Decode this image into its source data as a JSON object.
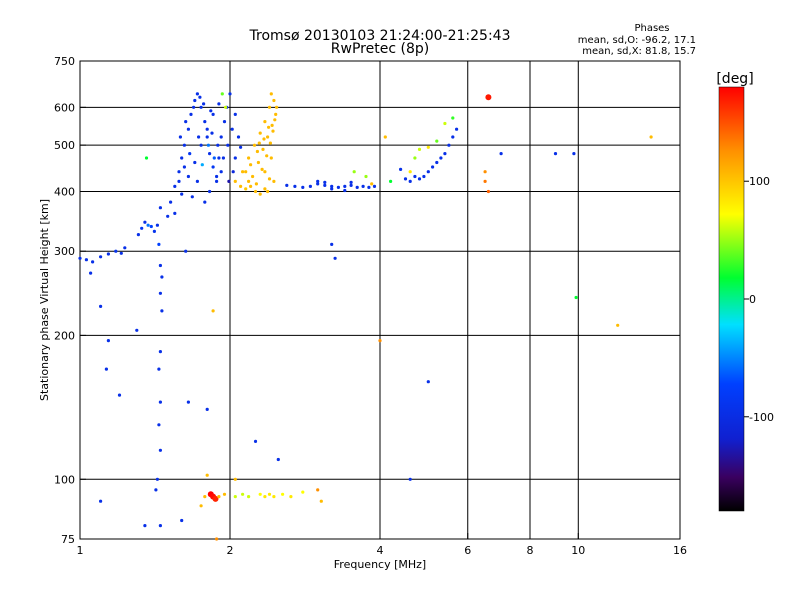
{
  "chart_data": {
    "type": "scatter",
    "title": "Tromsø 20130103 21:24:00-21:25:43",
    "subtitle": "RwPretec (8p)",
    "stats_header": "Phases",
    "stats_o": "mean, sd,O: -96.2, 17.1",
    "stats_x": "mean, sd,X: 81.8, 15.7",
    "xlabel": "Frequency [MHz]",
    "ylabel": "Stationary phase Virtual Height [km]",
    "xscale": "log",
    "yscale": "log",
    "xlim": [
      1,
      16
    ],
    "ylim": [
      75,
      750
    ],
    "xticks": [
      1,
      2,
      4,
      6,
      8,
      10,
      16
    ],
    "xtick_labels": [
      "1",
      "2",
      "4",
      "6",
      "8",
      "10",
      "16"
    ],
    "x_gridlines": [
      2,
      4,
      6,
      8,
      10
    ],
    "yticks": [
      75,
      100,
      200,
      300,
      400,
      500,
      600,
      750
    ],
    "ytick_labels": [
      "75",
      "100",
      "200",
      "300",
      "400",
      "500",
      "600",
      "750"
    ],
    "y_gridlines": [
      100,
      200,
      300,
      400,
      500,
      600
    ],
    "grid": true,
    "colorbar": {
      "label": "[deg]",
      "min": -180,
      "max": 180,
      "ticks": [
        -100,
        0,
        100
      ],
      "tick_labels": [
        "-100",
        "0",
        "100"
      ]
    },
    "points": [
      [
        1.0,
        290,
        -100
      ],
      [
        1.03,
        288,
        -100
      ],
      [
        1.06,
        285,
        -100
      ],
      [
        1.1,
        292,
        -100
      ],
      [
        1.14,
        296,
        -100
      ],
      [
        1.18,
        300,
        -95
      ],
      [
        1.21,
        297,
        -100
      ],
      [
        1.23,
        305,
        -100
      ],
      [
        1.31,
        325,
        -100
      ],
      [
        1.33,
        335,
        -90
      ],
      [
        1.35,
        345,
        -100
      ],
      [
        1.37,
        340,
        -60
      ],
      [
        1.39,
        338,
        -80
      ],
      [
        1.36,
        470,
        20
      ],
      [
        1.41,
        330,
        -95
      ],
      [
        1.43,
        340,
        -100
      ],
      [
        1.45,
        370,
        -100
      ],
      [
        1.44,
        310,
        -80
      ],
      [
        1.5,
        355,
        -100
      ],
      [
        1.52,
        380,
        -100
      ],
      [
        1.55,
        410,
        -100
      ],
      [
        1.58,
        440,
        -100
      ],
      [
        1.6,
        470,
        -100
      ],
      [
        1.62,
        500,
        -100
      ],
      [
        1.65,
        540,
        -100
      ],
      [
        1.67,
        580,
        -100
      ],
      [
        1.7,
        620,
        -100
      ],
      [
        1.72,
        640,
        -100
      ],
      [
        1.75,
        600,
        -100
      ],
      [
        1.78,
        560,
        -100
      ],
      [
        1.8,
        520,
        -100
      ],
      [
        1.82,
        480,
        -100
      ],
      [
        1.85,
        450,
        -90
      ],
      [
        1.88,
        430,
        -100
      ],
      [
        1.9,
        470,
        -100
      ],
      [
        1.92,
        520,
        -100
      ],
      [
        1.95,
        560,
        -100
      ],
      [
        1.97,
        600,
        -100
      ],
      [
        2.0,
        640,
        -100
      ],
      [
        1.55,
        360,
        -100
      ],
      [
        1.6,
        395,
        -100
      ],
      [
        1.65,
        430,
        -100
      ],
      [
        1.7,
        460,
        -100
      ],
      [
        1.75,
        500,
        -100
      ],
      [
        1.8,
        540,
        -100
      ],
      [
        1.85,
        580,
        -100
      ],
      [
        1.9,
        610,
        -100
      ],
      [
        1.58,
        420,
        -100
      ],
      [
        1.62,
        450,
        -100
      ],
      [
        1.68,
        390,
        -100
      ],
      [
        1.72,
        420,
        -100
      ],
      [
        1.78,
        380,
        -100
      ],
      [
        1.82,
        400,
        -100
      ],
      [
        1.88,
        420,
        -100
      ],
      [
        1.92,
        440,
        -100
      ],
      [
        1.66,
        480,
        -90
      ],
      [
        1.73,
        520,
        -100
      ],
      [
        1.81,
        500,
        -60
      ],
      [
        1.86,
        470,
        -70
      ],
      [
        1.94,
        470,
        -100
      ],
      [
        1.98,
        500,
        -100
      ],
      [
        2.02,
        540,
        -100
      ],
      [
        2.05,
        580,
        -100
      ],
      [
        2.08,
        520,
        -100
      ],
      [
        2.1,
        495,
        -100
      ],
      [
        1.99,
        420,
        -130
      ],
      [
        2.03,
        440,
        -110
      ],
      [
        1.76,
        455,
        -40
      ],
      [
        1.84,
        530,
        -100
      ],
      [
        1.77,
        610,
        -100
      ],
      [
        1.83,
        590,
        -100
      ],
      [
        1.93,
        640,
        40
      ],
      [
        1.96,
        600,
        60
      ],
      [
        2.05,
        470,
        -100
      ],
      [
        1.89,
        500,
        -100
      ],
      [
        1.59,
        520,
        -100
      ],
      [
        1.63,
        560,
        -100
      ],
      [
        1.69,
        600,
        -100
      ],
      [
        1.74,
        630,
        -100
      ],
      [
        2.05,
        420,
        100
      ],
      [
        2.1,
        410,
        100
      ],
      [
        2.15,
        405,
        95
      ],
      [
        2.2,
        410,
        100
      ],
      [
        2.25,
        400,
        100
      ],
      [
        2.3,
        395,
        100
      ],
      [
        2.35,
        405,
        100
      ],
      [
        2.38,
        400,
        100
      ],
      [
        2.12,
        440,
        100
      ],
      [
        2.18,
        470,
        100
      ],
      [
        2.24,
        500,
        100
      ],
      [
        2.3,
        530,
        100
      ],
      [
        2.35,
        560,
        100
      ],
      [
        2.4,
        600,
        100
      ],
      [
        2.42,
        640,
        100
      ],
      [
        2.45,
        620,
        100
      ],
      [
        2.22,
        430,
        100
      ],
      [
        2.28,
        460,
        100
      ],
      [
        2.33,
        490,
        100
      ],
      [
        2.38,
        520,
        100
      ],
      [
        2.43,
        550,
        100
      ],
      [
        2.47,
        580,
        100
      ],
      [
        2.26,
        415,
        100
      ],
      [
        2.32,
        445,
        100
      ],
      [
        2.37,
        475,
        100
      ],
      [
        2.41,
        505,
        100
      ],
      [
        2.44,
        535,
        100
      ],
      [
        2.46,
        565,
        100
      ],
      [
        2.2,
        455,
        100
      ],
      [
        2.27,
        485,
        100
      ],
      [
        2.34,
        515,
        100
      ],
      [
        2.39,
        545,
        100
      ],
      [
        2.45,
        420,
        100
      ],
      [
        2.4,
        425,
        100
      ],
      [
        2.48,
        600,
        100
      ],
      [
        2.18,
        420,
        100
      ],
      [
        2.15,
        440,
        100
      ],
      [
        2.35,
        440,
        100
      ],
      [
        2.42,
        470,
        100
      ],
      [
        2.29,
        505,
        100
      ],
      [
        2.6,
        412,
        -100
      ],
      [
        2.7,
        410,
        -100
      ],
      [
        2.8,
        408,
        -100
      ],
      [
        2.9,
        410,
        -100
      ],
      [
        3.0,
        415,
        -100
      ],
      [
        3.1,
        412,
        -100
      ],
      [
        3.2,
        410,
        -100
      ],
      [
        3.3,
        408,
        -100
      ],
      [
        3.4,
        410,
        -100
      ],
      [
        3.5,
        412,
        -100
      ],
      [
        3.6,
        408,
        -100
      ],
      [
        3.7,
        410,
        -100
      ],
      [
        3.8,
        408,
        -100
      ],
      [
        3.9,
        410,
        -100
      ],
      [
        3.0,
        420,
        -100
      ],
      [
        3.1,
        418,
        -100
      ],
      [
        3.2,
        405,
        -100
      ],
      [
        3.4,
        402,
        -100
      ],
      [
        3.5,
        418,
        -100
      ],
      [
        3.75,
        430,
        50
      ],
      [
        3.85,
        415,
        100
      ],
      [
        3.55,
        440,
        50
      ],
      [
        4.5,
        425,
        -100
      ],
      [
        4.6,
        420,
        -100
      ],
      [
        4.7,
        430,
        -100
      ],
      [
        4.8,
        425,
        -100
      ],
      [
        4.9,
        430,
        -100
      ],
      [
        5.0,
        440,
        -100
      ],
      [
        5.1,
        450,
        -100
      ],
      [
        5.2,
        460,
        -100
      ],
      [
        5.3,
        470,
        -100
      ],
      [
        5.4,
        480,
        -100
      ],
      [
        5.5,
        500,
        -100
      ],
      [
        5.6,
        520,
        -100
      ],
      [
        5.7,
        540,
        -100
      ],
      [
        4.6,
        440,
        80
      ],
      [
        4.7,
        470,
        50
      ],
      [
        4.8,
        490,
        60
      ],
      [
        5.0,
        495,
        80
      ],
      [
        5.2,
        510,
        40
      ],
      [
        5.4,
        555,
        60
      ],
      [
        5.6,
        570,
        30
      ],
      [
        4.2,
        420,
        20
      ],
      [
        4.4,
        445,
        -100
      ],
      [
        4.1,
        520,
        100
      ],
      [
        1.05,
        270,
        -100
      ],
      [
        1.1,
        230,
        -100
      ],
      [
        1.14,
        195,
        -100
      ],
      [
        1.13,
        170,
        -100
      ],
      [
        1.2,
        150,
        -100
      ],
      [
        1.3,
        205,
        -100
      ],
      [
        1.45,
        280,
        -100
      ],
      [
        1.46,
        265,
        -100
      ],
      [
        1.45,
        245,
        -100
      ],
      [
        1.46,
        225,
        -100
      ],
      [
        1.45,
        185,
        -100
      ],
      [
        1.44,
        170,
        -100
      ],
      [
        1.45,
        145,
        -100
      ],
      [
        1.44,
        130,
        -100
      ],
      [
        1.45,
        115,
        -100
      ],
      [
        1.43,
        100,
        -100
      ],
      [
        1.42,
        95,
        -100
      ],
      [
        1.45,
        80,
        -100
      ],
      [
        1.35,
        80,
        -100
      ],
      [
        1.63,
        300,
        -100
      ],
      [
        1.65,
        145,
        -100
      ],
      [
        1.8,
        140,
        -100
      ],
      [
        2.25,
        120,
        -100
      ],
      [
        2.5,
        110,
        -100
      ],
      [
        3.2,
        310,
        -100
      ],
      [
        3.25,
        290,
        -100
      ],
      [
        4.6,
        100,
        -100
      ],
      [
        5.0,
        160,
        -100
      ],
      [
        7.0,
        480,
        -100
      ],
      [
        9.0,
        480,
        -100
      ],
      [
        9.8,
        480,
        -100
      ],
      [
        1.1,
        90,
        -100
      ],
      [
        1.6,
        82,
        -100
      ],
      [
        4.0,
        195,
        120
      ],
      [
        9.9,
        240,
        20
      ],
      [
        12.0,
        210,
        100
      ],
      [
        14.0,
        520,
        100
      ],
      [
        6.6,
        630,
        170
      ],
      [
        6.5,
        420,
        130
      ],
      [
        6.6,
        400,
        140
      ],
      [
        6.5,
        440,
        120
      ],
      [
        1.85,
        225,
        100
      ],
      [
        1.88,
        75,
        120
      ],
      [
        1.75,
        88,
        100
      ],
      [
        1.78,
        92,
        100
      ],
      [
        1.83,
        93,
        180
      ],
      [
        1.85,
        92,
        175
      ],
      [
        1.87,
        91,
        165
      ],
      [
        1.9,
        92,
        100
      ],
      [
        1.95,
        93,
        100
      ],
      [
        2.05,
        92,
        60
      ],
      [
        2.12,
        93,
        60
      ],
      [
        2.18,
        92,
        60
      ],
      [
        2.3,
        93,
        70
      ],
      [
        2.35,
        92,
        80
      ],
      [
        2.4,
        93,
        80
      ],
      [
        2.45,
        92,
        80
      ],
      [
        2.55,
        93,
        70
      ],
      [
        2.65,
        92,
        80
      ],
      [
        2.8,
        94,
        70
      ],
      [
        3.0,
        95,
        120
      ],
      [
        3.05,
        90,
        100
      ],
      [
        1.8,
        102,
        100
      ],
      [
        2.05,
        100,
        100
      ]
    ]
  }
}
